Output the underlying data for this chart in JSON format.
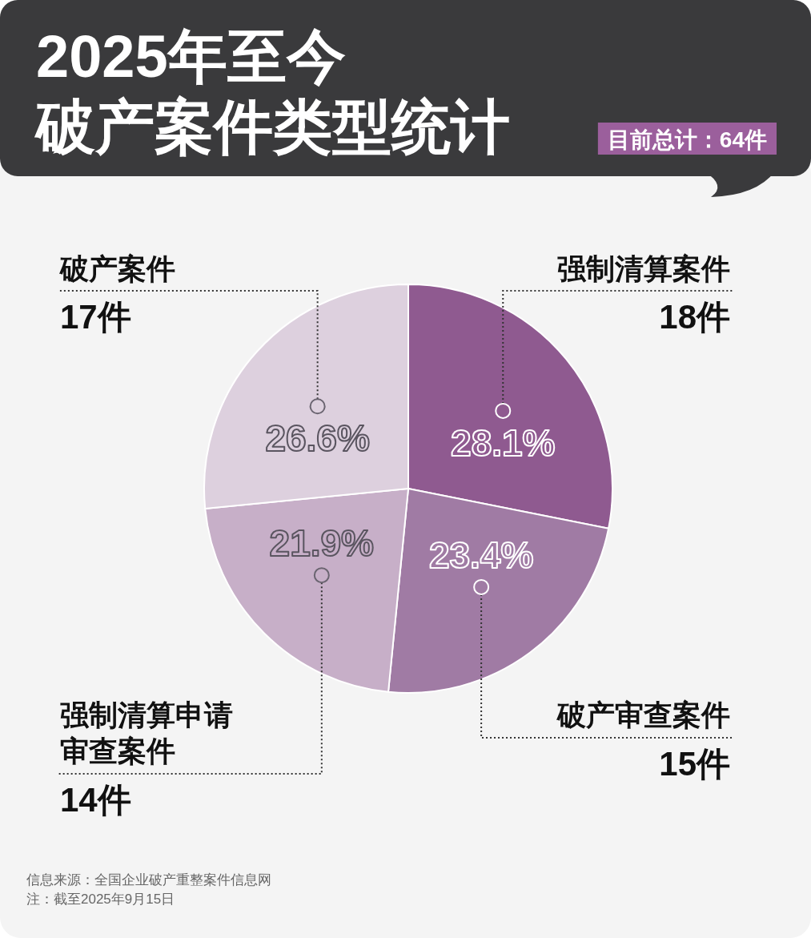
{
  "chart_data": {
    "type": "pie",
    "title": "2025年至今破产案件类型统计",
    "subtitle": "目前总计：64件",
    "categories": [
      "强制清算案件",
      "破产审查案件",
      "强制清算申请审查案件",
      "破产案件"
    ],
    "values": [
      18,
      15,
      14,
      17
    ],
    "value_labels": [
      "18件",
      "15件",
      "14件",
      "17件"
    ],
    "colors": [
      "#8f5a90",
      "#a07ba4",
      "#c7afc8",
      "#ddd0de"
    ],
    "annotations": [
      {
        "text": "28.1%",
        "x": "强制清算案件"
      },
      {
        "text": "23.4%",
        "x": "破产审查案件"
      },
      {
        "text": "21.9%",
        "x": "强制清算申请审查案件"
      },
      {
        "text": "26.6%",
        "x": "破产案件"
      },
      "信息来源：全国企业破产重整案件信息网",
      "注：截至2025年9月15日"
    ]
  }
}
